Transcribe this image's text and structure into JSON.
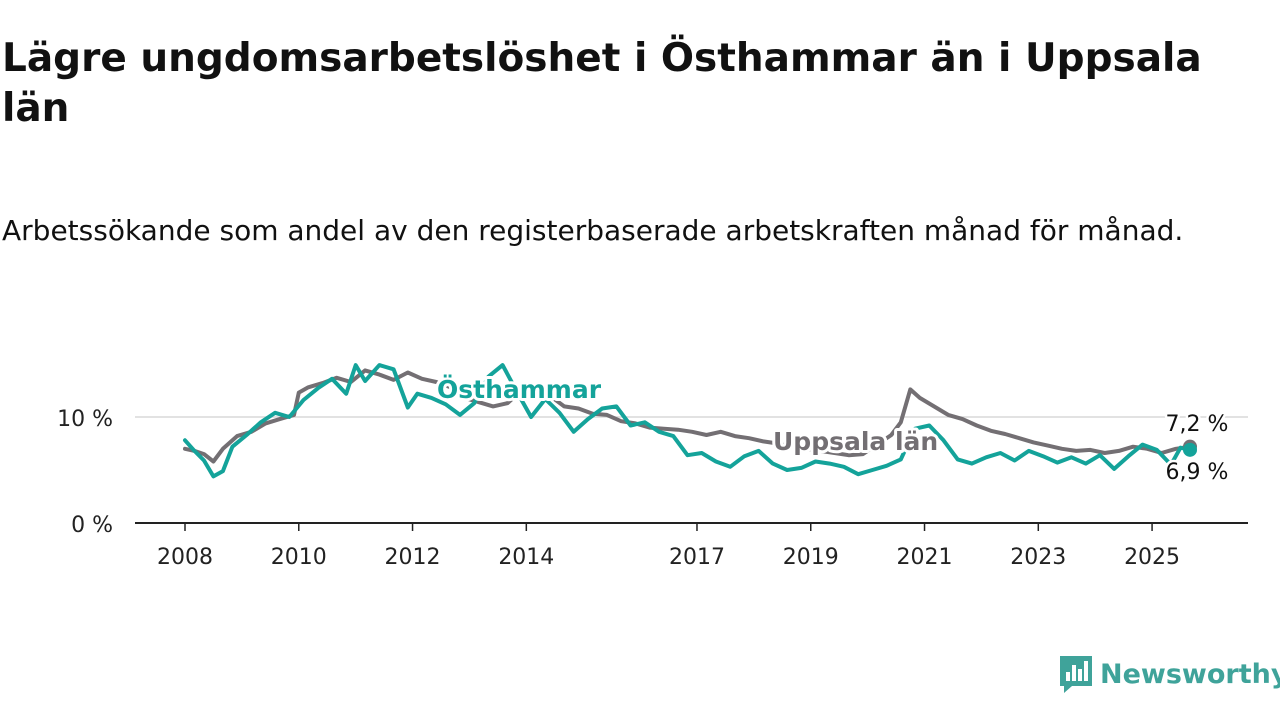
{
  "header": {
    "title": "Lägre ungdomsarbetslöshet i Östhammar än i Uppsala län",
    "subtitle": "Arbetssökande som andel av den registerbaserade arbetskraften månad för månad."
  },
  "brand": {
    "name": "Newsworthy",
    "logo_icon": "newsworthy-bar-chart-icon"
  },
  "colors": {
    "osthammar": "#14a39a",
    "uppsala": "#736f73",
    "axis": "#222222",
    "grid": "#d8d8d8",
    "brand": "#3fa39a"
  },
  "chart_data": {
    "type": "line",
    "title": "",
    "xlabel": "",
    "ylabel": "",
    "x_range": [
      "2008-01",
      "2025-09"
    ],
    "ylim": [
      0,
      15
    ],
    "y_ticks": [
      {
        "value": 0,
        "label": "0 %"
      },
      {
        "value": 10,
        "label": "10 %"
      }
    ],
    "x_ticks": [
      {
        "year": 2008,
        "label": "2008"
      },
      {
        "year": 2010,
        "label": "2010"
      },
      {
        "year": 2012,
        "label": "2012"
      },
      {
        "year": 2014,
        "label": "2014"
      },
      {
        "year": 2017,
        "label": "2017"
      },
      {
        "year": 2019,
        "label": "2019"
      },
      {
        "year": 2021,
        "label": "2021"
      },
      {
        "year": 2023,
        "label": "2023"
      },
      {
        "year": 2025,
        "label": "2025"
      }
    ],
    "grid": "horizontal at 10 %",
    "series": [
      {
        "name": "Uppsala län",
        "color_key": "uppsala",
        "label": "Uppsala län",
        "end_label": "7,2 %",
        "points": [
          [
            "2008-01",
            7.0
          ],
          [
            "2008-03",
            6.8
          ],
          [
            "2008-05",
            6.5
          ],
          [
            "2008-07",
            5.8
          ],
          [
            "2008-09",
            7.0
          ],
          [
            "2008-12",
            8.2
          ],
          [
            "2009-03",
            8.6
          ],
          [
            "2009-06",
            9.4
          ],
          [
            "2009-09",
            9.8
          ],
          [
            "2009-12",
            10.2
          ],
          [
            "2010-01",
            12.3
          ],
          [
            "2010-03",
            12.8
          ],
          [
            "2010-06",
            13.2
          ],
          [
            "2010-09",
            13.7
          ],
          [
            "2010-12",
            13.3
          ],
          [
            "2011-03",
            14.4
          ],
          [
            "2011-06",
            14.0
          ],
          [
            "2011-09",
            13.5
          ],
          [
            "2011-12",
            14.2
          ],
          [
            "2012-03",
            13.6
          ],
          [
            "2012-06",
            13.3
          ],
          [
            "2012-09",
            12.8
          ],
          [
            "2012-12",
            11.8
          ],
          [
            "2013-03",
            11.4
          ],
          [
            "2013-06",
            11.0
          ],
          [
            "2013-09",
            11.3
          ],
          [
            "2013-12",
            12.5
          ],
          [
            "2014-03",
            12.6
          ],
          [
            "2014-06",
            12.0
          ],
          [
            "2014-09",
            11.0
          ],
          [
            "2014-12",
            10.8
          ],
          [
            "2015-03",
            10.3
          ],
          [
            "2015-06",
            10.2
          ],
          [
            "2015-09",
            9.6
          ],
          [
            "2015-12",
            9.4
          ],
          [
            "2016-03",
            9.0
          ],
          [
            "2016-06",
            8.9
          ],
          [
            "2016-09",
            8.8
          ],
          [
            "2016-12",
            8.6
          ],
          [
            "2017-03",
            8.3
          ],
          [
            "2017-06",
            8.6
          ],
          [
            "2017-09",
            8.2
          ],
          [
            "2017-12",
            8.0
          ],
          [
            "2018-03",
            7.7
          ],
          [
            "2018-06",
            7.5
          ],
          [
            "2018-09",
            7.2
          ],
          [
            "2018-12",
            7.0
          ],
          [
            "2019-03",
            6.8
          ],
          [
            "2019-06",
            6.6
          ],
          [
            "2019-09",
            6.4
          ],
          [
            "2019-12",
            6.5
          ],
          [
            "2020-03",
            7.4
          ],
          [
            "2020-06",
            8.3
          ],
          [
            "2020-08",
            9.5
          ],
          [
            "2020-10",
            12.6
          ],
          [
            "2020-12",
            11.8
          ],
          [
            "2021-03",
            11.0
          ],
          [
            "2021-06",
            10.2
          ],
          [
            "2021-09",
            9.8
          ],
          [
            "2021-12",
            9.2
          ],
          [
            "2022-03",
            8.7
          ],
          [
            "2022-06",
            8.4
          ],
          [
            "2022-09",
            8.0
          ],
          [
            "2022-12",
            7.6
          ],
          [
            "2023-03",
            7.3
          ],
          [
            "2023-06",
            7.0
          ],
          [
            "2023-09",
            6.8
          ],
          [
            "2023-12",
            6.9
          ],
          [
            "2024-03",
            6.6
          ],
          [
            "2024-06",
            6.8
          ],
          [
            "2024-09",
            7.2
          ],
          [
            "2024-12",
            7.0
          ],
          [
            "2025-03",
            6.6
          ],
          [
            "2025-06",
            7.0
          ],
          [
            "2025-09",
            7.2
          ]
        ]
      },
      {
        "name": "Östhammar",
        "color_key": "osthammar",
        "label": "Östhammar",
        "end_label": "6,9 %",
        "points": [
          [
            "2008-01",
            7.8
          ],
          [
            "2008-03",
            6.8
          ],
          [
            "2008-05",
            5.9
          ],
          [
            "2008-07",
            4.4
          ],
          [
            "2008-09",
            4.9
          ],
          [
            "2008-11",
            7.2
          ],
          [
            "2009-02",
            8.3
          ],
          [
            "2009-05",
            9.5
          ],
          [
            "2009-08",
            10.4
          ],
          [
            "2009-11",
            10.0
          ],
          [
            "2010-02",
            11.6
          ],
          [
            "2010-05",
            12.7
          ],
          [
            "2010-08",
            13.6
          ],
          [
            "2010-11",
            12.2
          ],
          [
            "2011-01",
            14.9
          ],
          [
            "2011-03",
            13.4
          ],
          [
            "2011-06",
            14.9
          ],
          [
            "2011-09",
            14.5
          ],
          [
            "2011-12",
            10.9
          ],
          [
            "2012-02",
            12.2
          ],
          [
            "2012-05",
            11.8
          ],
          [
            "2012-08",
            11.2
          ],
          [
            "2012-11",
            10.2
          ],
          [
            "2013-02",
            11.3
          ],
          [
            "2013-05",
            13.8
          ],
          [
            "2013-08",
            14.9
          ],
          [
            "2013-11",
            12.4
          ],
          [
            "2014-02",
            10.0
          ],
          [
            "2014-05",
            11.7
          ],
          [
            "2014-08",
            10.4
          ],
          [
            "2014-11",
            8.6
          ],
          [
            "2015-02",
            9.8
          ],
          [
            "2015-05",
            10.8
          ],
          [
            "2015-08",
            11.0
          ],
          [
            "2015-11",
            9.2
          ],
          [
            "2016-02",
            9.5
          ],
          [
            "2016-05",
            8.6
          ],
          [
            "2016-08",
            8.2
          ],
          [
            "2016-11",
            6.4
          ],
          [
            "2017-02",
            6.6
          ],
          [
            "2017-05",
            5.8
          ],
          [
            "2017-08",
            5.3
          ],
          [
            "2017-11",
            6.3
          ],
          [
            "2018-02",
            6.8
          ],
          [
            "2018-05",
            5.6
          ],
          [
            "2018-08",
            5.0
          ],
          [
            "2018-11",
            5.2
          ],
          [
            "2019-02",
            5.8
          ],
          [
            "2019-05",
            5.6
          ],
          [
            "2019-08",
            5.3
          ],
          [
            "2019-11",
            4.6
          ],
          [
            "2020-02",
            5.0
          ],
          [
            "2020-05",
            5.4
          ],
          [
            "2020-08",
            6.0
          ],
          [
            "2020-11",
            8.9
          ],
          [
            "2021-02",
            9.2
          ],
          [
            "2021-05",
            7.8
          ],
          [
            "2021-08",
            6.0
          ],
          [
            "2021-11",
            5.6
          ],
          [
            "2022-02",
            6.2
          ],
          [
            "2022-05",
            6.6
          ],
          [
            "2022-08",
            5.9
          ],
          [
            "2022-11",
            6.8
          ],
          [
            "2023-02",
            6.3
          ],
          [
            "2023-05",
            5.7
          ],
          [
            "2023-08",
            6.2
          ],
          [
            "2023-11",
            5.6
          ],
          [
            "2024-02",
            6.4
          ],
          [
            "2024-05",
            5.1
          ],
          [
            "2024-08",
            6.3
          ],
          [
            "2024-11",
            7.4
          ],
          [
            "2025-02",
            6.9
          ],
          [
            "2025-05",
            5.5
          ],
          [
            "2025-07",
            7.1
          ],
          [
            "2025-09",
            6.9
          ]
        ]
      }
    ]
  }
}
